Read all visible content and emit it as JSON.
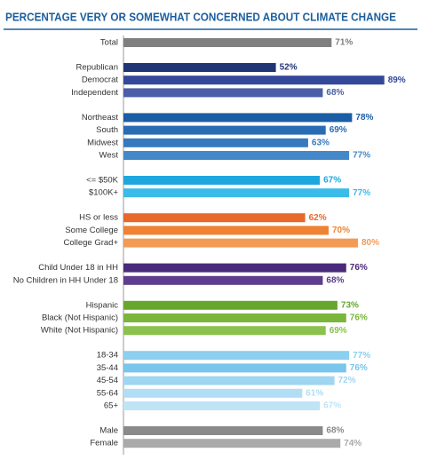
{
  "chart_data": {
    "type": "bar",
    "orientation": "horizontal",
    "title": "PERCENTAGE VERY OR SOMEWHAT CONCERNED ABOUT CLIMATE CHANGE",
    "groups": [
      {
        "categories": [
          "Total"
        ],
        "values": [
          71
        ],
        "value_labels": [
          "71%"
        ],
        "colors": [
          "#7f7f7f"
        ]
      },
      {
        "categories": [
          "Republican",
          "Democrat",
          "Independent"
        ],
        "values": [
          52,
          89,
          68
        ],
        "value_labels": [
          "52%",
          "89%",
          "68%"
        ],
        "colors": [
          "#1f3574",
          "#34489a",
          "#4a5fa8"
        ]
      },
      {
        "categories": [
          "Northeast",
          "South",
          "Midwest",
          "West"
        ],
        "values": [
          78,
          69,
          63,
          77
        ],
        "value_labels": [
          "78%",
          "69%",
          "63%",
          "77%"
        ],
        "colors": [
          "#1b5ea6",
          "#286cb4",
          "#3679bf",
          "#4588c9"
        ]
      },
      {
        "categories": [
          "<= $50K",
          "$100K+"
        ],
        "values": [
          67,
          77
        ],
        "value_labels": [
          "67%",
          "77%"
        ],
        "colors": [
          "#1ea7df",
          "#3bbbe9"
        ]
      },
      {
        "categories": [
          "HS or less",
          "Some College",
          "College Grad+"
        ],
        "values": [
          62,
          70,
          80
        ],
        "value_labels": [
          "62%",
          "70%",
          "80%"
        ],
        "colors": [
          "#e8692a",
          "#f08234",
          "#f39a55"
        ]
      },
      {
        "categories": [
          "Child Under 18 in HH",
          "No Children in HH Under 18"
        ],
        "values": [
          76,
          68
        ],
        "value_labels": [
          "76%",
          "68%"
        ],
        "colors": [
          "#4a2a7a",
          "#5e3c8e"
        ]
      },
      {
        "categories": [
          "Hispanic",
          "Black (Not Hispanic)",
          "White (Not Hispanic)"
        ],
        "values": [
          73,
          76,
          69
        ],
        "value_labels": [
          "73%",
          "76%",
          "69%"
        ],
        "colors": [
          "#67a62d",
          "#7ab63c",
          "#8cc14e"
        ]
      },
      {
        "categories": [
          "18-34",
          "35-44",
          "45-54",
          "55-64",
          "65+"
        ],
        "values": [
          77,
          76,
          72,
          61,
          67
        ],
        "value_labels": [
          "77%",
          "76%",
          "72%",
          "61%",
          "67%"
        ],
        "colors": [
          "#8ccfee",
          "#79c5eb",
          "#9fd6f1",
          "#b1def4",
          "#bfe4f6"
        ]
      },
      {
        "categories": [
          "Male",
          "Female"
        ],
        "values": [
          68,
          74
        ],
        "value_labels": [
          "68%",
          "74%"
        ],
        "colors": [
          "#8a8a8a",
          "#aaaaaa"
        ]
      }
    ]
  }
}
